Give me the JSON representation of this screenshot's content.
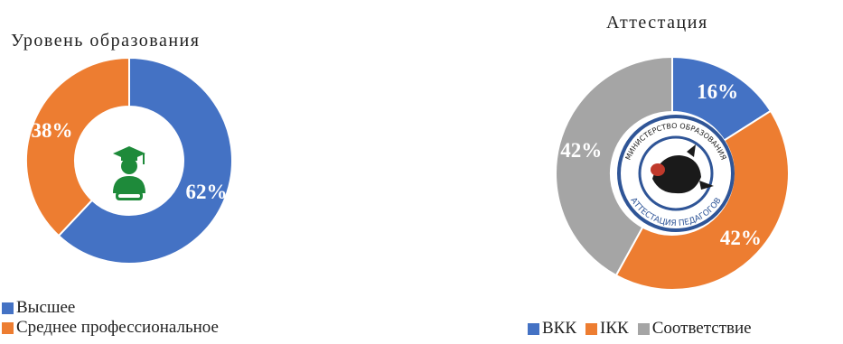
{
  "chart_data": [
    {
      "type": "pie",
      "title": "Уровень образования",
      "categories": [
        "Высшее",
        "Среднее профессиональное"
      ],
      "values": [
        62,
        38
      ],
      "labels": [
        "62%",
        "38%"
      ],
      "colors": [
        "#4472C4",
        "#ED7D31"
      ],
      "legend": "bottom-left"
    },
    {
      "type": "pie",
      "title": "Аттестация",
      "categories": [
        "ВКК",
        "IКК",
        "Соответствие"
      ],
      "values": [
        16,
        42,
        42
      ],
      "labels": [
        "16%",
        "42%",
        "42%"
      ],
      "colors": [
        "#4472C4",
        "#ED7D31",
        "#A5A5A5"
      ],
      "legend": "bottom",
      "center_logo_text": [
        "МИНИСТЕРСТВО ОБРАЗОВАНИЯ",
        "АТТЕСТАЦИЯ ПЕДАГОГОВ"
      ]
    }
  ],
  "icons": {
    "left_center": "graduate-icon",
    "right_center": "ministry-logo-icon"
  }
}
